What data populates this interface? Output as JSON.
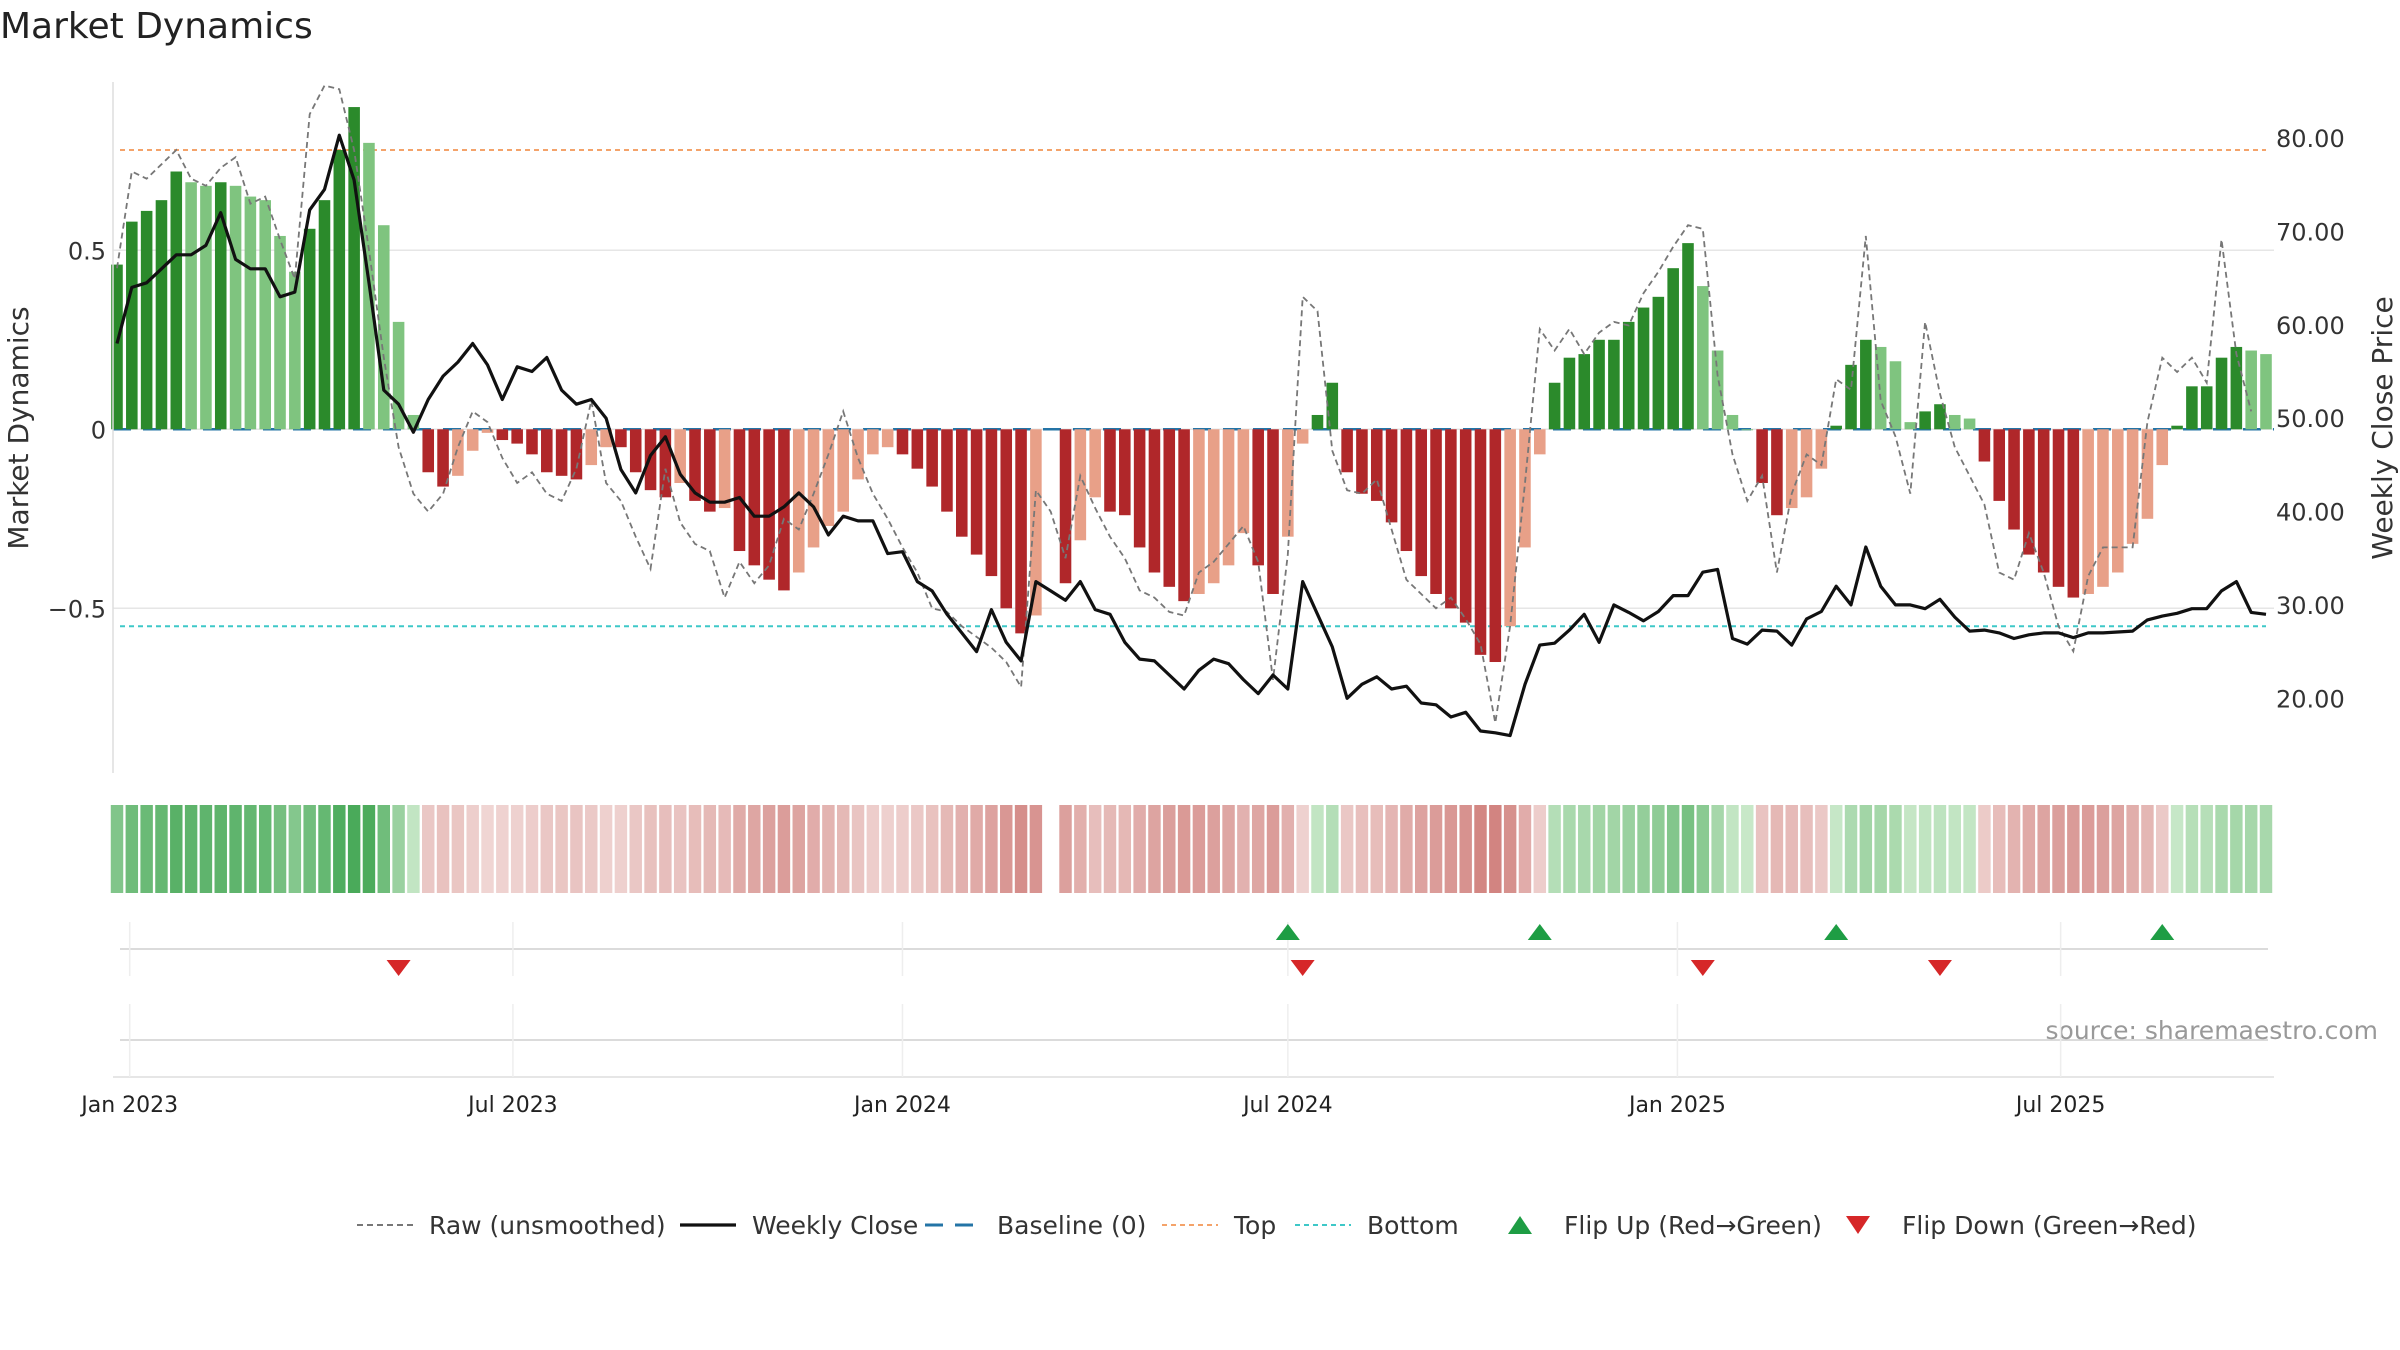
{
  "chart_data": {
    "type": "bar",
    "title": "Market Dynamics",
    "ylabel_left": "Market Dynamics",
    "ylabel_right": "Weekly Close Price",
    "ylim_left": [
      -0.96,
      0.97
    ],
    "ylim_right": [
      12.0,
      86.0
    ],
    "yticks_left": [
      {
        "v": 0.5,
        "label": "0.5"
      },
      {
        "v": 0,
        "label": "0"
      },
      {
        "v": -0.5,
        "label": "−0.5"
      }
    ],
    "yticks_right": [
      {
        "v": 80,
        "label": "80.00"
      },
      {
        "v": 70,
        "label": "70.00"
      },
      {
        "v": 60,
        "label": "60.00"
      },
      {
        "v": 50,
        "label": "50.00"
      },
      {
        "v": 40,
        "label": "40.00"
      },
      {
        "v": 30,
        "label": "30.00"
      },
      {
        "v": 20,
        "label": "20.00"
      }
    ],
    "x_start": "2022-12-26",
    "x_step_days": 7,
    "date_ticks": [
      {
        "label": "Jan 2023",
        "date": "2023-01-01"
      },
      {
        "label": "Jul 2023",
        "date": "2023-07-01"
      },
      {
        "label": "Jan 2024",
        "date": "2024-01-01"
      },
      {
        "label": "Jul 2024",
        "date": "2024-07-01"
      },
      {
        "label": "Jan 2025",
        "date": "2025-01-01"
      },
      {
        "label": "Jul 2025",
        "date": "2025-07-01"
      }
    ],
    "top_line": 0.78,
    "bottom_line": -0.55,
    "dynamics": [
      0.46,
      0.58,
      0.61,
      0.64,
      0.72,
      0.69,
      0.68,
      0.69,
      0.68,
      0.65,
      0.64,
      0.54,
      0.44,
      0.56,
      0.64,
      0.78,
      0.9,
      0.8,
      0.57,
      0.3,
      0.04,
      -0.12,
      -0.16,
      -0.13,
      -0.06,
      -0.01,
      -0.03,
      -0.04,
      -0.07,
      -0.12,
      -0.13,
      -0.14,
      -0.1,
      -0.05,
      -0.05,
      -0.12,
      -0.17,
      -0.19,
      -0.15,
      -0.2,
      -0.23,
      -0.22,
      -0.34,
      -0.38,
      -0.42,
      -0.45,
      -0.4,
      -0.33,
      -0.27,
      -0.23,
      -0.14,
      -0.07,
      -0.05,
      -0.07,
      -0.11,
      -0.16,
      -0.23,
      -0.3,
      -0.35,
      -0.41,
      -0.5,
      -0.57,
      -0.52,
      null,
      -0.43,
      -0.31,
      -0.19,
      -0.23,
      -0.24,
      -0.33,
      -0.4,
      -0.44,
      -0.48,
      -0.46,
      -0.43,
      -0.38,
      -0.29,
      -0.38,
      -0.46,
      -0.3,
      -0.04,
      0.04,
      0.13,
      -0.12,
      -0.18,
      -0.2,
      -0.26,
      -0.34,
      -0.41,
      -0.46,
      -0.5,
      -0.54,
      -0.63,
      -0.65,
      -0.55,
      -0.33,
      -0.07,
      0.13,
      0.2,
      0.21,
      0.25,
      0.25,
      0.3,
      0.34,
      0.37,
      0.45,
      0.52,
      0.4,
      0.22,
      0.04,
      0,
      -0.15,
      -0.24,
      -0.22,
      -0.19,
      -0.11,
      0.01,
      0.18,
      0.25,
      0.23,
      0.19,
      0.02,
      0.05,
      0.07,
      0.04,
      0.03,
      -0.09,
      -0.2,
      -0.28,
      -0.35,
      -0.4,
      -0.44,
      -0.47,
      -0.46,
      -0.44,
      -0.4,
      -0.32,
      -0.25,
      -0.1,
      0.01,
      0.12,
      0.12,
      0.2,
      0.23,
      0.22,
      0.21
    ],
    "raw": [
      0.45,
      0.72,
      0.7,
      0.74,
      0.78,
      0.7,
      0.68,
      0.73,
      0.76,
      0.63,
      0.65,
      0.53,
      0.42,
      0.88,
      0.96,
      0.95,
      0.78,
      0.5,
      0.2,
      -0.05,
      -0.18,
      -0.23,
      -0.18,
      -0.05,
      0.05,
      0.02,
      -0.08,
      -0.15,
      -0.12,
      -0.18,
      -0.2,
      -0.11,
      0.08,
      -0.15,
      -0.2,
      -0.3,
      -0.39,
      -0.11,
      -0.26,
      -0.32,
      -0.34,
      -0.47,
      -0.37,
      -0.43,
      -0.38,
      -0.25,
      -0.28,
      -0.18,
      -0.07,
      0.05,
      -0.08,
      -0.18,
      -0.25,
      -0.33,
      -0.4,
      -0.5,
      -0.51,
      -0.55,
      -0.58,
      -0.61,
      -0.65,
      -0.72,
      -0.17,
      -0.23,
      -0.36,
      -0.13,
      -0.22,
      -0.3,
      -0.36,
      -0.45,
      -0.47,
      -0.51,
      -0.52,
      -0.4,
      -0.37,
      -0.32,
      -0.27,
      -0.37,
      -0.7,
      -0.35,
      0.37,
      0.33,
      -0.06,
      -0.17,
      -0.18,
      -0.14,
      -0.28,
      -0.42,
      -0.46,
      -0.5,
      -0.47,
      -0.53,
      -0.6,
      -0.82,
      -0.55,
      -0.15,
      0.28,
      0.22,
      0.28,
      0.21,
      0.27,
      0.3,
      0.29,
      0.38,
      0.44,
      0.51,
      0.57,
      0.56,
      0.15,
      -0.07,
      -0.2,
      -0.13,
      -0.4,
      -0.18,
      -0.07,
      -0.1,
      0.14,
      0.11,
      0.54,
      0.08,
      -0.02,
      -0.18,
      0.3,
      0.1,
      -0.05,
      -0.13,
      -0.21,
      -0.4,
      -0.42,
      -0.29,
      -0.4,
      -0.55,
      -0.62,
      -0.41,
      -0.33,
      -0.33,
      -0.33,
      0.02,
      0.2,
      0.16,
      0.2,
      0.13,
      0.53,
      0.21,
      0.05
    ],
    "close": [
      58,
      64,
      64.5,
      66,
      67.5,
      67.5,
      68.5,
      72,
      67,
      66,
      66,
      63,
      63.5,
      72.3,
      74.5,
      80.3,
      75.5,
      64.5,
      53,
      51.5,
      48.5,
      52,
      54.5,
      56,
      58,
      55.7,
      52,
      55.5,
      55,
      56.5,
      53,
      51.5,
      52,
      50,
      44.5,
      42,
      46,
      48,
      44,
      42,
      41,
      41,
      41.5,
      39.5,
      39.5,
      40.5,
      42,
      40.5,
      37.5,
      39.5,
      39,
      39,
      35.5,
      35.7,
      32.5,
      31.5,
      29,
      27,
      25,
      29.5,
      26,
      24,
      32.5,
      31.5,
      30.5,
      32.5,
      29.5,
      29,
      26,
      24.2,
      24,
      22.5,
      21,
      23,
      24.2,
      23.7,
      22,
      20.5,
      22.5,
      21,
      32.5,
      29,
      25.5,
      20,
      21.5,
      22.3,
      21,
      21.3,
      19.5,
      19.3,
      18,
      18.5,
      16.5,
      16.3,
      16,
      21.5,
      25.7,
      25.9,
      27.3,
      29,
      26,
      30,
      29.2,
      28.3,
      29.3,
      31,
      31,
      33.5,
      33.8,
      26.4,
      25.8,
      27.3,
      27.2,
      25.7,
      28.5,
      29.3,
      32,
      30,
      36.2,
      32,
      30,
      30,
      29.6,
      30.6,
      28.7,
      27.2,
      27.3,
      27,
      26.4,
      26.8,
      27,
      27,
      26.5,
      27,
      27,
      27.1,
      27.2,
      28.4,
      28.8,
      29.1,
      29.6,
      29.6,
      31.5,
      32.5,
      29.2,
      29
    ],
    "flip_up_indices": [
      79,
      96,
      116,
      138
    ],
    "flip_down_indices": [
      19,
      80,
      107,
      123
    ],
    "source": "source: sharemaestro.com",
    "legend": [
      {
        "label": "Raw (unsmoothed)",
        "kind": "dashed-gray"
      },
      {
        "label": "Weekly Close",
        "kind": "solid-black"
      },
      {
        "label": "Baseline (0)",
        "kind": "dashed-blue"
      },
      {
        "label": "Top",
        "kind": "dotted-orange"
      },
      {
        "label": "Bottom",
        "kind": "dotted-teal"
      },
      {
        "label": "Flip Up (Red→Green)",
        "kind": "triangle-up"
      },
      {
        "label": "Flip Down (Green→Red)",
        "kind": "triangle-down"
      }
    ],
    "colors": {
      "pos_strong": "#2b8a2b",
      "pos_weak": "#7fc47f",
      "neg_strong": "#b0272a",
      "neg_weak": "#e8a088",
      "raw_line": "#777777",
      "close_line": "#111111",
      "baseline": "#2474a6",
      "top_line": "#f4a36a",
      "bottom_line": "#3ec8c8",
      "flip_up": "#1e9d44",
      "flip_down": "#d62728",
      "grid": "#e6e6e6"
    }
  }
}
